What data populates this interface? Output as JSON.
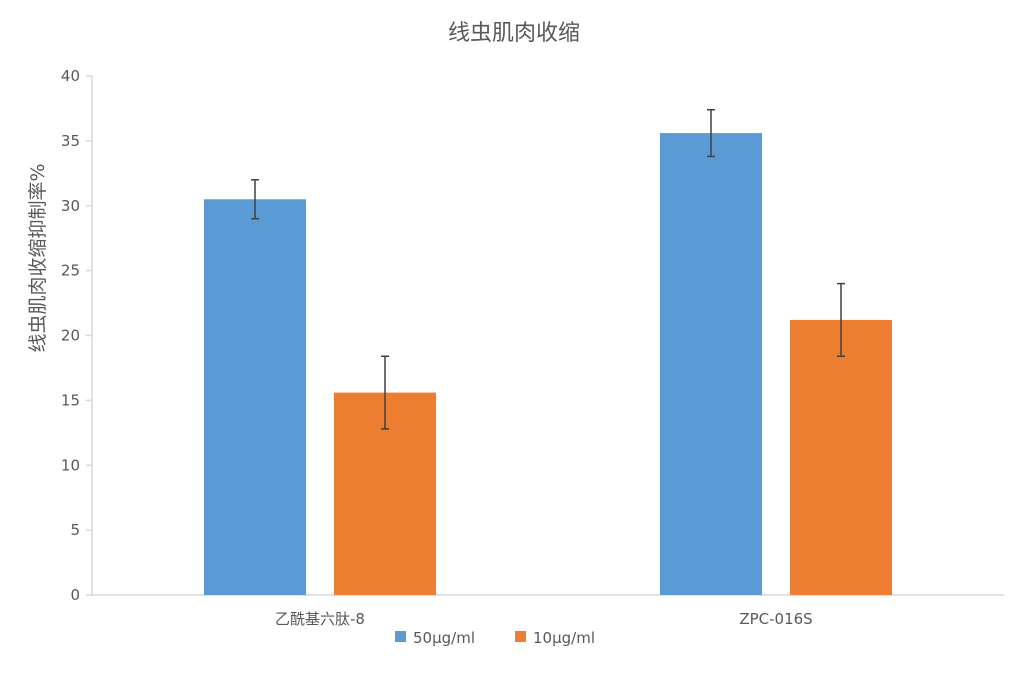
{
  "chart_data": {
    "type": "bar",
    "title": "线虫肌肉收缩",
    "xlabel": "",
    "ylabel": "线虫肌肉收缩抑制率%",
    "ylim": [
      0,
      40
    ],
    "yticks": [
      0,
      5,
      10,
      15,
      20,
      25,
      30,
      35,
      40
    ],
    "categories": [
      "乙酰基六肽-8",
      "ZPC-016S"
    ],
    "series": [
      {
        "name": "50μg/ml",
        "color": "#5b9bd5",
        "values": [
          30.5,
          35.6
        ],
        "errors": [
          1.5,
          1.8
        ]
      },
      {
        "name": "10μg/ml",
        "color": "#ed7d31",
        "values": [
          15.6,
          21.2
        ],
        "errors": [
          2.8,
          2.8
        ]
      }
    ],
    "grid": false,
    "legend": "bottom"
  }
}
